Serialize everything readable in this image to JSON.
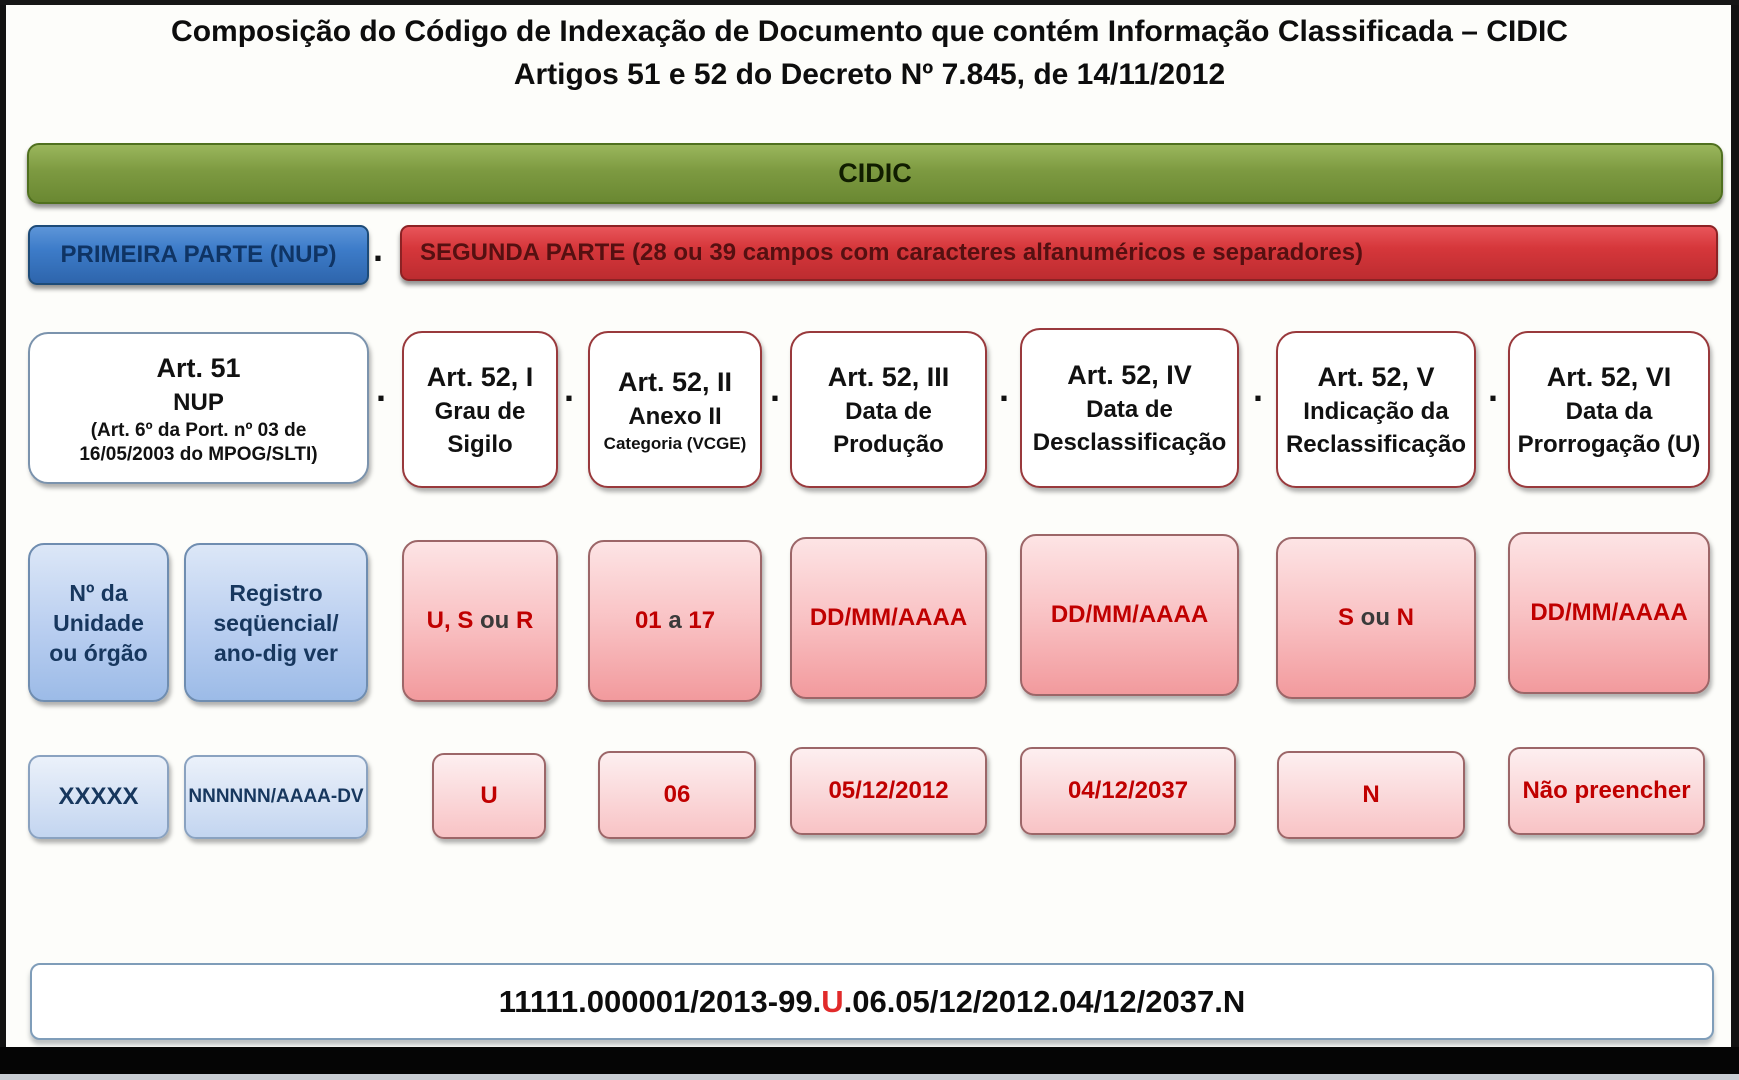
{
  "title": {
    "line1": "Composição do Código de Indexação de Documento que contém Informação Classificada – CIDIC",
    "line2": "Artigos 51 e 52 do Decreto Nº 7.845, de 14/11/2012"
  },
  "banner": {
    "label": "CIDIC"
  },
  "parts": {
    "first_label": "PRIMEIRA PARTE (NUP)",
    "second_label": "SEGUNDA PARTE (28 ou 39 campos com caracteres alfanuméricos e separadores)",
    "separator": "."
  },
  "columns": [
    {
      "id": "nup",
      "header": {
        "line1": "Art. 51",
        "line2": "NUP",
        "line3": "(Art. 6º da Port. nº 03 de",
        "line4": "16/05/2003 do MPOG/SLTI)"
      },
      "fields": [
        {
          "label_lines": [
            "Nº da",
            "Unidade",
            "ou órgão"
          ],
          "example": "XXXXX"
        },
        {
          "label_lines": [
            "Registro",
            "seqüencial/",
            "ano-dig ver"
          ],
          "example": "NNNNNN/AAAA-DV"
        }
      ]
    },
    {
      "id": "art52-i",
      "header": {
        "line1": "Art. 52, I",
        "line2": "Grau de",
        "line3": "Sigilo"
      },
      "value": [
        {
          "t": "U, S",
          "c": "red"
        },
        {
          "t": " ou ",
          "c": "dark"
        },
        {
          "t": "R",
          "c": "red"
        }
      ],
      "example": "U"
    },
    {
      "id": "art52-ii",
      "header": {
        "line1": "Art. 52, II",
        "line2": "Anexo II",
        "line3_small": "Categoria (VCGE)"
      },
      "value": [
        {
          "t": "01",
          "c": "red"
        },
        {
          "t": " a ",
          "c": "dark"
        },
        {
          "t": "17",
          "c": "red"
        }
      ],
      "example": "06"
    },
    {
      "id": "art52-iii",
      "header": {
        "line1": "Art. 52, III",
        "line2": "Data de",
        "line3": "Produção"
      },
      "value": [
        {
          "t": "DD/MM/AAAA",
          "c": "red"
        }
      ],
      "example": "05/12/2012"
    },
    {
      "id": "art52-iv",
      "header": {
        "line1": "Art. 52, IV",
        "line2": "Data de",
        "line3": "Desclassificação"
      },
      "value": [
        {
          "t": "DD/MM/AAAA",
          "c": "red"
        }
      ],
      "example": "04/12/2037"
    },
    {
      "id": "art52-v",
      "header": {
        "line1": "Art. 52, V",
        "line2": "Indicação da",
        "line3": "Reclassificação"
      },
      "value": [
        {
          "t": "S",
          "c": "red"
        },
        {
          "t": " ou ",
          "c": "dark"
        },
        {
          "t": "N",
          "c": "red"
        }
      ],
      "example": "N"
    },
    {
      "id": "art52-vi",
      "header": {
        "line1": "Art. 52, VI",
        "line2": "Data da",
        "line3": "Prorrogação (U)"
      },
      "value": [
        {
          "t": "DD/MM/AAAA",
          "c": "red"
        }
      ],
      "example": "Não preencher"
    }
  ],
  "code_bar": {
    "prefix": "11111.000001/2013-99.",
    "highlight": "U",
    "suffix": ".06.05/12/2012.04/12/2037.N"
  },
  "colors": {
    "banner_green": "#7d9a41",
    "first_part_blue": "#3d7cc9",
    "second_part_red": "#d6373b",
    "pink_value_text": "#C00000",
    "blue_value_text": "#17375E",
    "code_highlight_red": "#e12a2a"
  }
}
